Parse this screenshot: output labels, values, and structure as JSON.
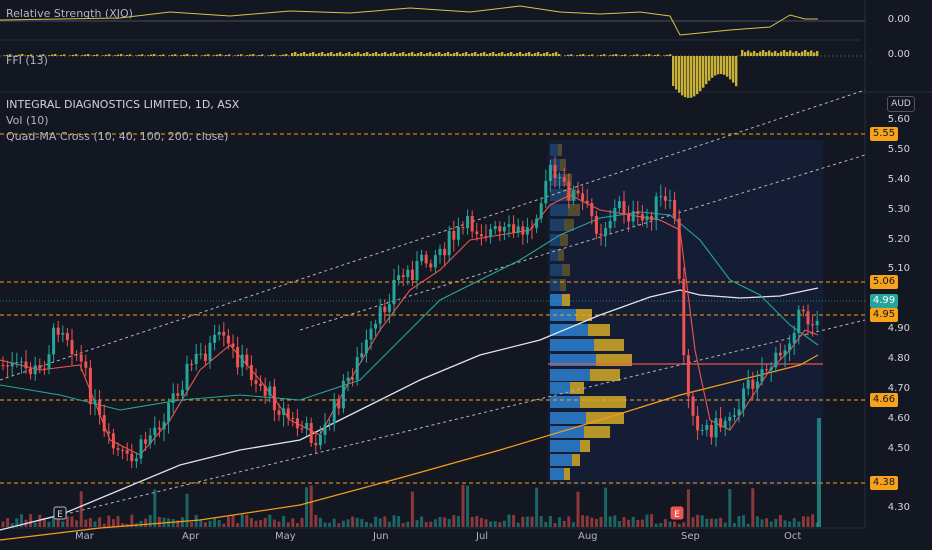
{
  "indicators": {
    "rs_label": "Relative Strength (XJO)",
    "rs_value": "0.00",
    "ffi_label": "FFI (13)",
    "ffi_value": "0.00"
  },
  "main": {
    "symbol_line": "INTEGRAL DIAGNOSTICS LIMITED, 1D, ASX",
    "vol_label": "Vol (10)",
    "ma_label": "Quad-MA Cross (10, 40, 100, 200, close)",
    "currency": "AUD"
  },
  "price_axis": [
    "5.60",
    "5.50",
    "5.40",
    "5.30",
    "5.20",
    "5.10",
    "4.90",
    "4.80",
    "4.70",
    "4.60",
    "4.50",
    "4.30"
  ],
  "price_tags": {
    "level_555": "5.55",
    "level_506": "5.06",
    "last_price": "4.99",
    "level_495": "4.95",
    "level_466": "4.66",
    "level_438": "4.38"
  },
  "time_axis": [
    "Mar",
    "Apr",
    "May",
    "Jun",
    "Jul",
    "Aug",
    "Sep",
    "Oct"
  ],
  "event_markers": [
    "E",
    "E"
  ],
  "colors": {
    "background": "#131722",
    "up_candle": "#26a69a",
    "down_candle": "#ef5350",
    "level_line": "#f7a21b",
    "ma_10": "#ef5350",
    "ma_40": "#26a69a",
    "ma_100": "#e0e3eb",
    "ma_200": "#f59c1a",
    "volume_profile_up": "#2a7bc7",
    "volume_profile_down": "#c9a227"
  }
}
